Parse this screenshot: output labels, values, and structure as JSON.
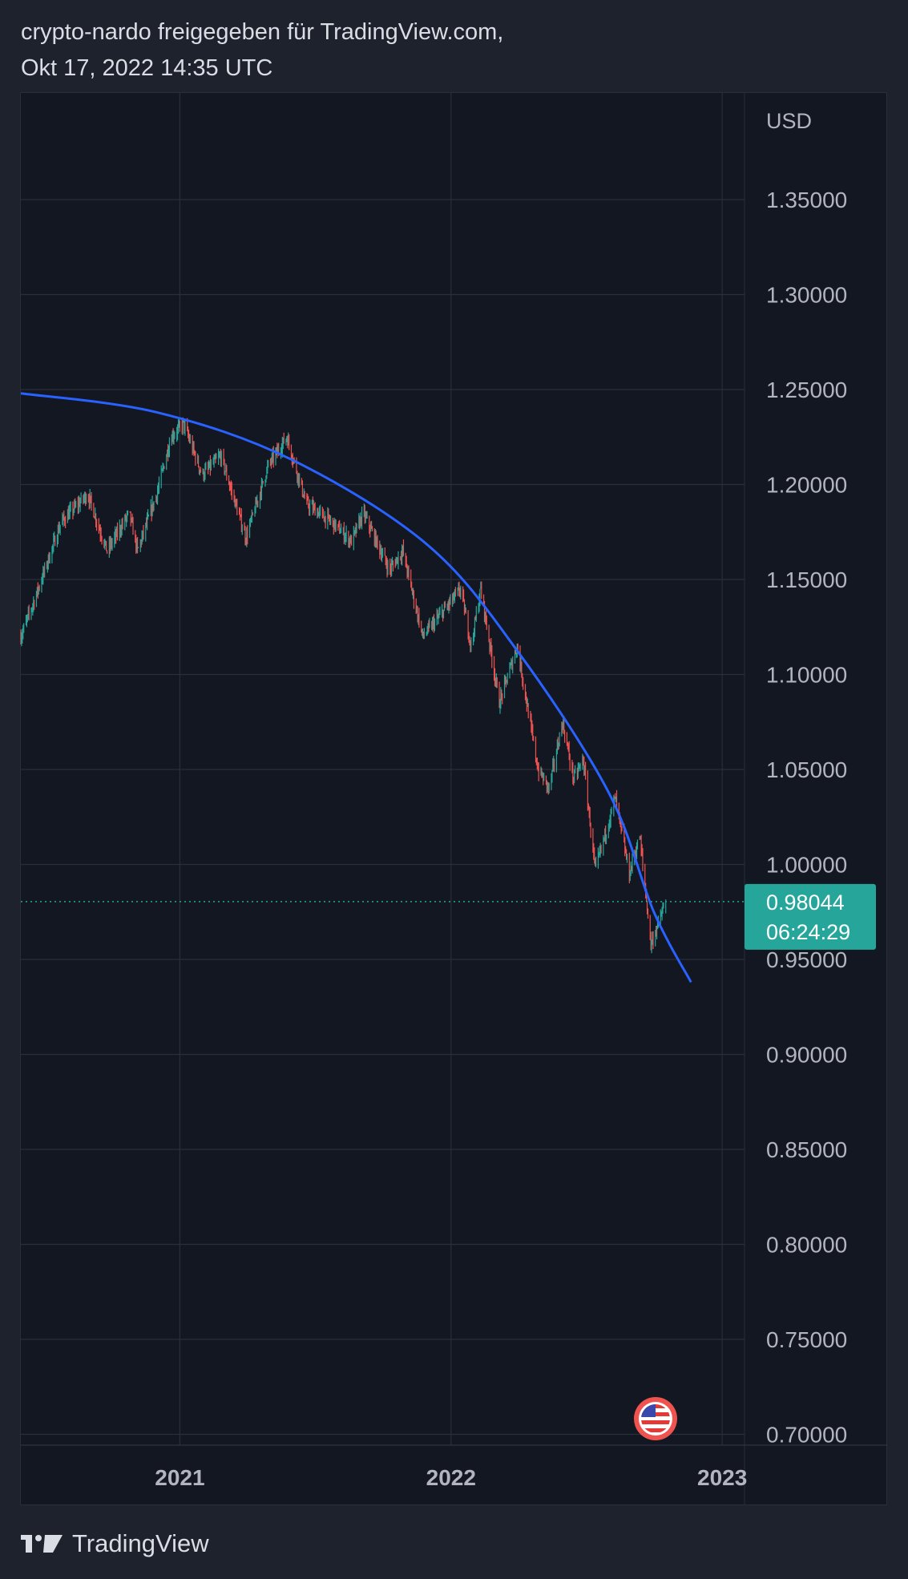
{
  "header": {
    "line1": "crypto-nardo freigegeben für TradingView.com,",
    "line2": "Okt 17, 2022 14:35 UTC"
  },
  "footer": {
    "brand": "TradingView",
    "logo_icon": "tradingview-logo-icon"
  },
  "colors": {
    "background": "#1e222d",
    "pane": "#131722",
    "grid": "#2a2e39",
    "up": "#26a69a",
    "down": "#ef5350",
    "curve": "#2962ff",
    "axis_text": "#b2b5be",
    "price_label_bg": "#26a69a"
  },
  "chart_data": {
    "type": "candlestick",
    "symbol_currency": "USD",
    "y_ticks": [
      "1.35000",
      "1.30000",
      "1.25000",
      "1.20000",
      "1.15000",
      "1.10000",
      "1.05000",
      "1.00000",
      "0.95000",
      "0.90000",
      "0.85000",
      "0.80000",
      "0.75000",
      "0.70000"
    ],
    "x_ticks": [
      "2021",
      "2022",
      "2023"
    ],
    "ylim": [
      0.695,
      1.385
    ],
    "xlim": [
      "2020-06-01",
      "2023-01-31"
    ],
    "current_price": {
      "value": "0.98044",
      "countdown": "06:24:29"
    },
    "price_path": [
      [
        "2020-06-01",
        1.12
      ],
      [
        "2020-06-20",
        1.14
      ],
      [
        "2020-07-25",
        1.18
      ],
      [
        "2020-08-30",
        1.195
      ],
      [
        "2020-09-25",
        1.165
      ],
      [
        "2020-10-25",
        1.185
      ],
      [
        "2020-11-05",
        1.165
      ],
      [
        "2020-12-01",
        1.195
      ],
      [
        "2020-12-20",
        1.225
      ],
      [
        "2021-01-06",
        1.232
      ],
      [
        "2021-01-31",
        1.205
      ],
      [
        "2021-02-25",
        1.215
      ],
      [
        "2021-03-31",
        1.172
      ],
      [
        "2021-04-30",
        1.21
      ],
      [
        "2021-05-25",
        1.225
      ],
      [
        "2021-06-20",
        1.19
      ],
      [
        "2021-07-25",
        1.18
      ],
      [
        "2021-08-20",
        1.17
      ],
      [
        "2021-09-05",
        1.185
      ],
      [
        "2021-10-10",
        1.155
      ],
      [
        "2021-10-28",
        1.165
      ],
      [
        "2021-11-24",
        1.12
      ],
      [
        "2021-12-15",
        1.13
      ],
      [
        "2022-01-14",
        1.145
      ],
      [
        "2022-01-28",
        1.115
      ],
      [
        "2022-02-10",
        1.145
      ],
      [
        "2022-03-07",
        1.085
      ],
      [
        "2022-03-31",
        1.115
      ],
      [
        "2022-04-28",
        1.05
      ],
      [
        "2022-05-13",
        1.04
      ],
      [
        "2022-05-31",
        1.075
      ],
      [
        "2022-06-15",
        1.045
      ],
      [
        "2022-06-28",
        1.055
      ],
      [
        "2022-07-14",
        0.997
      ],
      [
        "2022-08-10",
        1.035
      ],
      [
        "2022-08-29",
        0.995
      ],
      [
        "2022-09-12",
        1.015
      ],
      [
        "2022-09-27",
        0.958
      ],
      [
        "2022-10-17",
        0.98
      ]
    ],
    "curve": {
      "style": "hand-drawn arc",
      "color": "#2962ff",
      "points": [
        [
          "2020-06-01",
          1.248
        ],
        [
          "2020-12-01",
          1.238
        ],
        [
          "2021-06-01",
          1.213
        ],
        [
          "2021-12-01",
          1.168
        ],
        [
          "2022-04-01",
          1.112
        ],
        [
          "2022-08-01",
          1.038
        ],
        [
          "2022-10-01",
          0.975
        ],
        [
          "2022-11-20",
          0.938
        ]
      ]
    },
    "grid": true,
    "legend": "none"
  }
}
